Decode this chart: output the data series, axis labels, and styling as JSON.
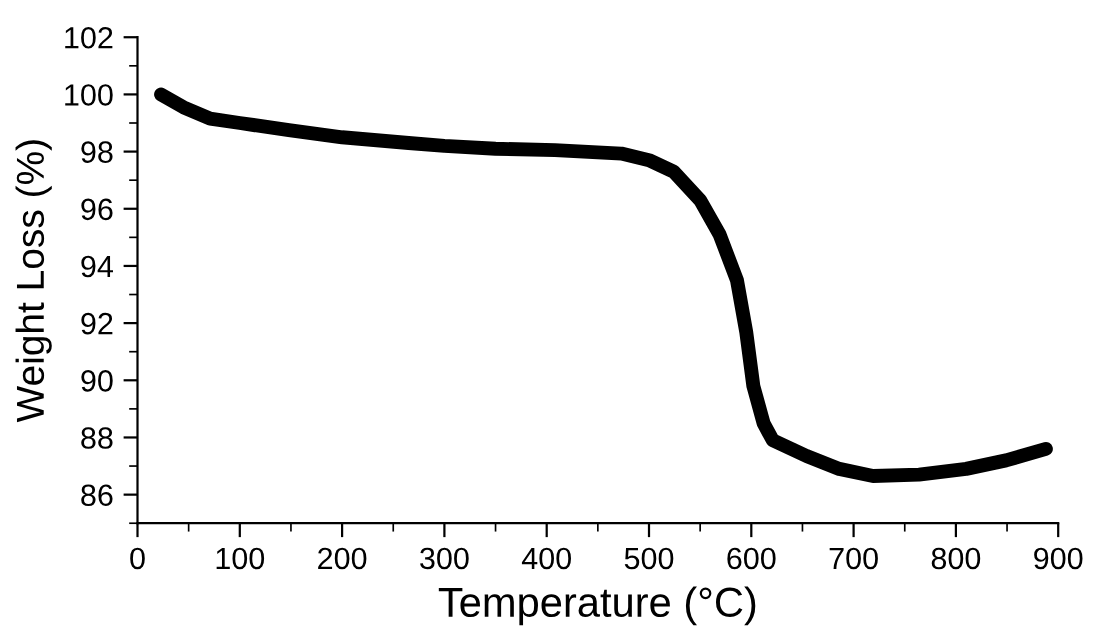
{
  "chart_data": {
    "type": "line",
    "xlabel": "Temperature (°C)",
    "ylabel": "Weight Loss (%)",
    "xlim": [
      0,
      900
    ],
    "xticks": [
      0,
      100,
      200,
      300,
      400,
      500,
      600,
      700,
      800,
      900
    ],
    "ylim": [
      85,
      102
    ],
    "yticks": [
      86,
      88,
      90,
      92,
      94,
      96,
      98,
      100,
      102
    ],
    "grid": false,
    "legend": false,
    "marker": "none",
    "line_style": "solid",
    "series": [
      {
        "color": "#000000",
        "x": [
          23,
          45,
          71,
          100,
          148,
          200,
          265,
          300,
          350,
          408,
          473,
          500,
          524,
          550,
          569,
          586,
          595,
          602,
          612,
          621,
          654,
          686,
          719,
          764,
          810,
          849,
          888
        ],
        "values": [
          100.0,
          99.55,
          99.15,
          99.0,
          98.75,
          98.5,
          98.3,
          98.2,
          98.1,
          98.05,
          97.93,
          97.7,
          97.3,
          96.3,
          95.1,
          93.5,
          91.7,
          89.8,
          88.5,
          87.9,
          87.35,
          86.9,
          86.65,
          86.7,
          86.9,
          87.2,
          87.6
        ]
      }
    ]
  }
}
